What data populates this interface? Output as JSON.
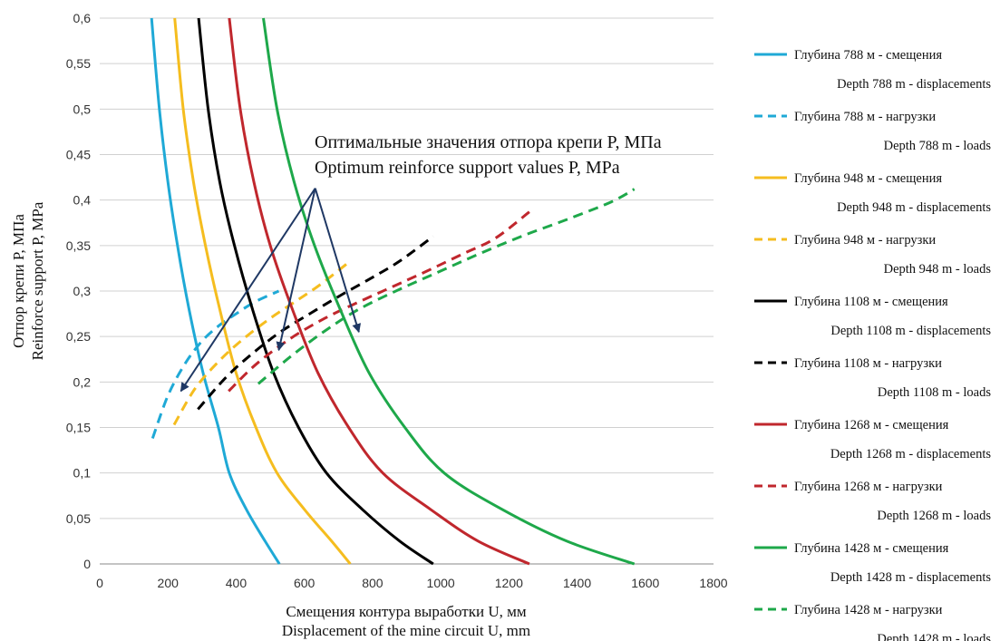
{
  "chart_data": {
    "type": "line",
    "xlabel_ru": "Смещения контура выработки U, мм",
    "xlabel_en": "Displacement of the mine circuit U, mm",
    "ylabel_ru": "Отпор крепи P, МПа",
    "ylabel_en": "Reinforce support P, MPa",
    "xlim": [
      0,
      1800
    ],
    "ylim": [
      0,
      0.6
    ],
    "x_ticks": [
      0,
      200,
      400,
      600,
      800,
      1000,
      1200,
      1400,
      1600,
      1800
    ],
    "x_tick_labels": [
      "0",
      "200",
      "400",
      "600",
      "800",
      "1000",
      "1200",
      "1400",
      "1600",
      "1800"
    ],
    "y_ticks": [
      0,
      0.05,
      0.1,
      0.15,
      0.2,
      0.25,
      0.3,
      0.35,
      0.4,
      0.45,
      0.5,
      0.55,
      0.6
    ],
    "y_tick_labels": [
      "0",
      "0,05",
      "0,1",
      "0,15",
      "0,2",
      "0,25",
      "0,3",
      "0,35",
      "0,4",
      "0,45",
      "0,5",
      "0,55",
      "0,6"
    ],
    "grid": "horizontal",
    "legend_position": "right",
    "annotation_ru": "Оптимальные значения отпора крепи P, МПа",
    "annotation_en": "Optimum reinforce support values P, MPa",
    "annotation_origin": [
      632,
      0.413
    ],
    "annotation_targets": [
      [
        238,
        0.19
      ],
      [
        525,
        0.235
      ],
      [
        760,
        0.255
      ]
    ],
    "series": [
      {
        "name_ru": "Глубина 788 м - смещения",
        "name_en": "Depth 788 m - displacements",
        "color": "#1fa9d6",
        "dash": "solid",
        "x": [
          152,
          175,
          200,
          228,
          262,
          303,
          348,
          380,
          430,
          485,
          527
        ],
        "y": [
          0.6,
          0.5,
          0.42,
          0.35,
          0.28,
          0.21,
          0.15,
          0.1,
          0.06,
          0.025,
          0
        ]
      },
      {
        "name_ru": "Глубина 788 м - нагрузки",
        "name_en": "Depth 788 m - loads",
        "color": "#1fa9d6",
        "dash": "dashed",
        "x": [
          155,
          200,
          250,
          300,
          350,
          400,
          455,
          525
        ],
        "y": [
          0.138,
          0.185,
          0.22,
          0.245,
          0.262,
          0.275,
          0.288,
          0.3
        ]
      },
      {
        "name_ru": "Глубина 948 м - смещения",
        "name_en": "Depth 948 m - displacements",
        "color": "#f5bd1f",
        "dash": "solid",
        "x": [
          220,
          245,
          275,
          310,
          352,
          400,
          458,
          520,
          600,
          680,
          735
        ],
        "y": [
          0.6,
          0.5,
          0.42,
          0.35,
          0.28,
          0.21,
          0.15,
          0.1,
          0.06,
          0.025,
          0
        ]
      },
      {
        "name_ru": "Глубина 948 м - нагрузки",
        "name_en": "Depth 948 m - loads",
        "color": "#f5bd1f",
        "dash": "dashed",
        "x": [
          218,
          280,
          350,
          420,
          500,
          580,
          650,
          735
        ],
        "y": [
          0.153,
          0.193,
          0.223,
          0.247,
          0.27,
          0.29,
          0.308,
          0.333
        ]
      },
      {
        "name_ru": "Глубина 1108 м - смещения",
        "name_en": "Depth 1108 m - displacements",
        "color": "#000000",
        "dash": "solid",
        "x": [
          290,
          318,
          352,
          395,
          448,
          510,
          583,
          665,
          770,
          880,
          978
        ],
        "y": [
          0.6,
          0.5,
          0.42,
          0.35,
          0.28,
          0.21,
          0.15,
          0.1,
          0.06,
          0.025,
          0
        ]
      },
      {
        "name_ru": "Глубина 1108 м - нагрузки",
        "name_en": "Depth 1108 m - loads",
        "color": "#000000",
        "dash": "dashed",
        "x": [
          288,
          370,
          450,
          530,
          620,
          710,
          800,
          880,
          978
        ],
        "y": [
          0.17,
          0.205,
          0.232,
          0.255,
          0.276,
          0.296,
          0.315,
          0.333,
          0.36
        ]
      },
      {
        "name_ru": "Глубина 1268 м - смещения",
        "name_en": "Depth 1268 m - displacements",
        "color": "#c0272d",
        "dash": "solid",
        "x": [
          380,
          412,
          452,
          500,
          565,
          640,
          730,
          830,
          970,
          1110,
          1260
        ],
        "y": [
          0.6,
          0.5,
          0.42,
          0.35,
          0.28,
          0.21,
          0.15,
          0.1,
          0.06,
          0.025,
          0
        ]
      },
      {
        "name_ru": "Глубина 1268 м - нагрузки",
        "name_en": "Depth 1268 m - loads",
        "color": "#c0272d",
        "dash": "dashed",
        "x": [
          378,
          460,
          560,
          660,
          760,
          860,
          960,
          1060,
          1160,
          1260
        ],
        "y": [
          0.19,
          0.22,
          0.248,
          0.27,
          0.288,
          0.305,
          0.322,
          0.34,
          0.358,
          0.387
        ]
      },
      {
        "name_ru": "Глубина 1428 м - смещения",
        "name_en": "Depth 1428 m - displacements",
        "color": "#1ea84a",
        "dash": "solid",
        "x": [
          480,
          520,
          570,
          630,
          705,
          790,
          895,
          1010,
          1180,
          1370,
          1568
        ],
        "y": [
          0.6,
          0.5,
          0.42,
          0.35,
          0.28,
          0.21,
          0.15,
          0.1,
          0.06,
          0.025,
          0
        ]
      },
      {
        "name_ru": "Глубина 1428 м - нагрузки",
        "name_en": "Depth 1428 m - loads",
        "color": "#1ea84a",
        "dash": "dashed",
        "x": [
          465,
          560,
          660,
          760,
          880,
          1000,
          1120,
          1250,
          1380,
          1500,
          1568
        ],
        "y": [
          0.198,
          0.228,
          0.256,
          0.28,
          0.302,
          0.322,
          0.342,
          0.362,
          0.38,
          0.398,
          0.412
        ]
      }
    ]
  }
}
